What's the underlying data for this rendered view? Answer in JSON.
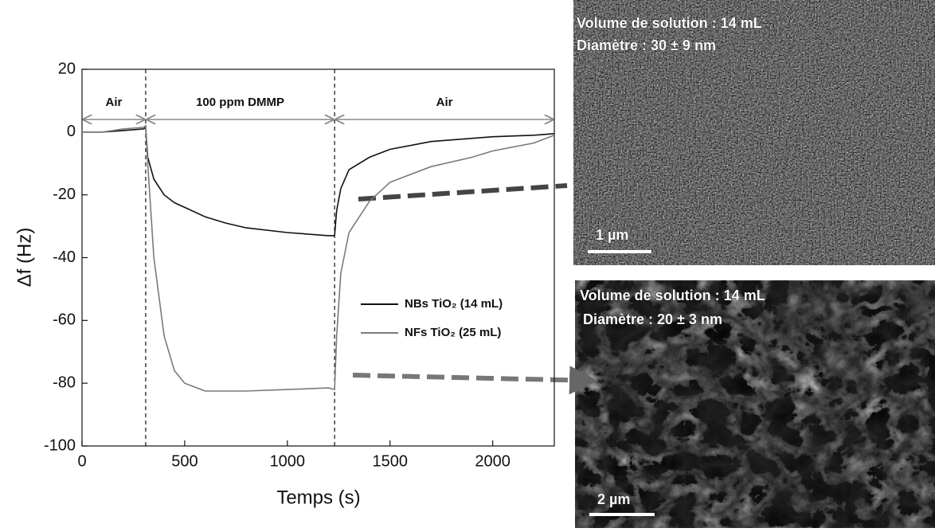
{
  "chart_data": {
    "type": "line",
    "xlabel": "Temps (s)",
    "ylabel": "Δf (Hz)",
    "x": [
      0,
      100,
      200,
      300,
      310,
      320,
      350,
      400,
      450,
      500,
      600,
      700,
      800,
      1000,
      1200,
      1230,
      1240,
      1260,
      1300,
      1400,
      1500,
      1700,
      1900,
      2000,
      2200,
      2300
    ],
    "series": [
      {
        "name": "NBs TiO₂ (14 mL)",
        "color": "#111111",
        "values": [
          0,
          0,
          0.5,
          1,
          1.5,
          -8,
          -15,
          -20,
          -22.5,
          -24,
          -27,
          -29,
          -30.5,
          -32,
          -33,
          -33,
          -25,
          -18,
          -12,
          -8,
          -5.5,
          -3,
          -2,
          -1.5,
          -1,
          -0.5
        ]
      },
      {
        "name": "NFs TiO₂ (25 mL)",
        "color": "#7a7a7a",
        "values": [
          0,
          0,
          1,
          1.5,
          2,
          -10,
          -40,
          -65,
          -76,
          -80,
          -82.5,
          -82.5,
          -82.5,
          -82,
          -81.5,
          -82,
          -65,
          -45,
          -32,
          -22,
          -16,
          -11,
          -8,
          -6,
          -3.5,
          -1
        ]
      }
    ],
    "xlim": [
      0,
      2300
    ],
    "xticks": [
      0,
      500,
      1000,
      1500,
      2000
    ],
    "ylim": [
      -100,
      20
    ],
    "yticks": [
      -100,
      -80,
      -60,
      -40,
      -20,
      0,
      20
    ],
    "markers": [
      310,
      1230
    ],
    "regions": [
      {
        "label": "Air",
        "start": 0,
        "end": 310
      },
      {
        "label": "100 ppm DMMP",
        "start": 310,
        "end": 1230
      },
      {
        "label": "Air",
        "start": 1230,
        "end": 2300
      }
    ],
    "images": [
      {
        "lines": [
          "Volume de solution : 14 mL",
          "Diamètre : 30 ± 9 nm"
        ],
        "scale": "1 µm"
      },
      {
        "lines": [
          "Volume de solution : 14 mL",
          "Diamètre : 20 ± 3 nm"
        ],
        "scale": "2 µm"
      }
    ]
  }
}
